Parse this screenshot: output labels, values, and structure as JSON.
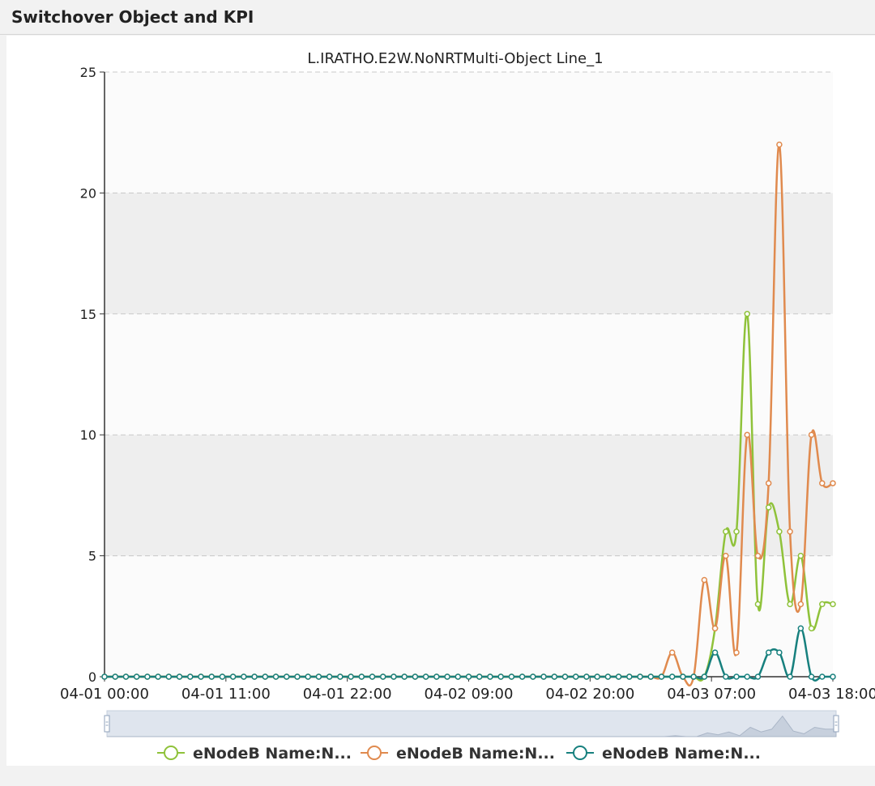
{
  "header": {
    "title": "Switchover Object and KPI"
  },
  "chart_data": {
    "type": "line",
    "title": "L.IRATHO.E2W.NoNRTMulti-Object Line_1",
    "xlabel": "",
    "ylabel": "",
    "ylim": [
      0,
      25
    ],
    "yticks": [
      "0",
      "5",
      "10",
      "15",
      "20",
      "25"
    ],
    "xtick_labels": [
      "04-01 00:00",
      "04-01 11:00",
      "04-01 22:00",
      "04-02 09:00",
      "04-02 20:00",
      "04-03 07:00",
      "04-03 18:00"
    ],
    "point_count": 69,
    "grid": true,
    "legend_position": "bottom-center",
    "series": [
      {
        "name": "eNodeB Name:N...",
        "color": "#8fc23a",
        "values": [
          0,
          0,
          0,
          0,
          0,
          0,
          0,
          0,
          0,
          0,
          0,
          0,
          0,
          0,
          0,
          0,
          0,
          0,
          0,
          0,
          0,
          0,
          0,
          0,
          0,
          0,
          0,
          0,
          0,
          0,
          0,
          0,
          0,
          0,
          0,
          0,
          0,
          0,
          0,
          0,
          0,
          0,
          0,
          0,
          0,
          0,
          0,
          0,
          0,
          0,
          0,
          0,
          0,
          0,
          0,
          0,
          0,
          2,
          6,
          6,
          15,
          3,
          7,
          6,
          3,
          5,
          2,
          3,
          3
        ]
      },
      {
        "name": "eNodeB Name:N...",
        "color": "#e08a4e",
        "values": [
          0,
          0,
          0,
          0,
          0,
          0,
          0,
          0,
          0,
          0,
          0,
          0,
          0,
          0,
          0,
          0,
          0,
          0,
          0,
          0,
          0,
          0,
          0,
          0,
          0,
          0,
          0,
          0,
          0,
          0,
          0,
          0,
          0,
          0,
          0,
          0,
          0,
          0,
          0,
          0,
          0,
          0,
          0,
          0,
          0,
          0,
          0,
          0,
          0,
          0,
          0,
          0,
          0,
          1,
          0,
          0,
          4,
          2,
          5,
          1,
          10,
          5,
          8,
          22,
          6,
          3,
          10,
          8,
          8
        ]
      },
      {
        "name": "eNodeB Name:N...",
        "color": "#17807e",
        "values": [
          0,
          0,
          0,
          0,
          0,
          0,
          0,
          0,
          0,
          0,
          0,
          0,
          0,
          0,
          0,
          0,
          0,
          0,
          0,
          0,
          0,
          0,
          0,
          0,
          0,
          0,
          0,
          0,
          0,
          0,
          0,
          0,
          0,
          0,
          0,
          0,
          0,
          0,
          0,
          0,
          0,
          0,
          0,
          0,
          0,
          0,
          0,
          0,
          0,
          0,
          0,
          0,
          0,
          0,
          0,
          0,
          0,
          1,
          0,
          0,
          0,
          0,
          1,
          1,
          0,
          2,
          0,
          0,
          0
        ]
      }
    ]
  }
}
